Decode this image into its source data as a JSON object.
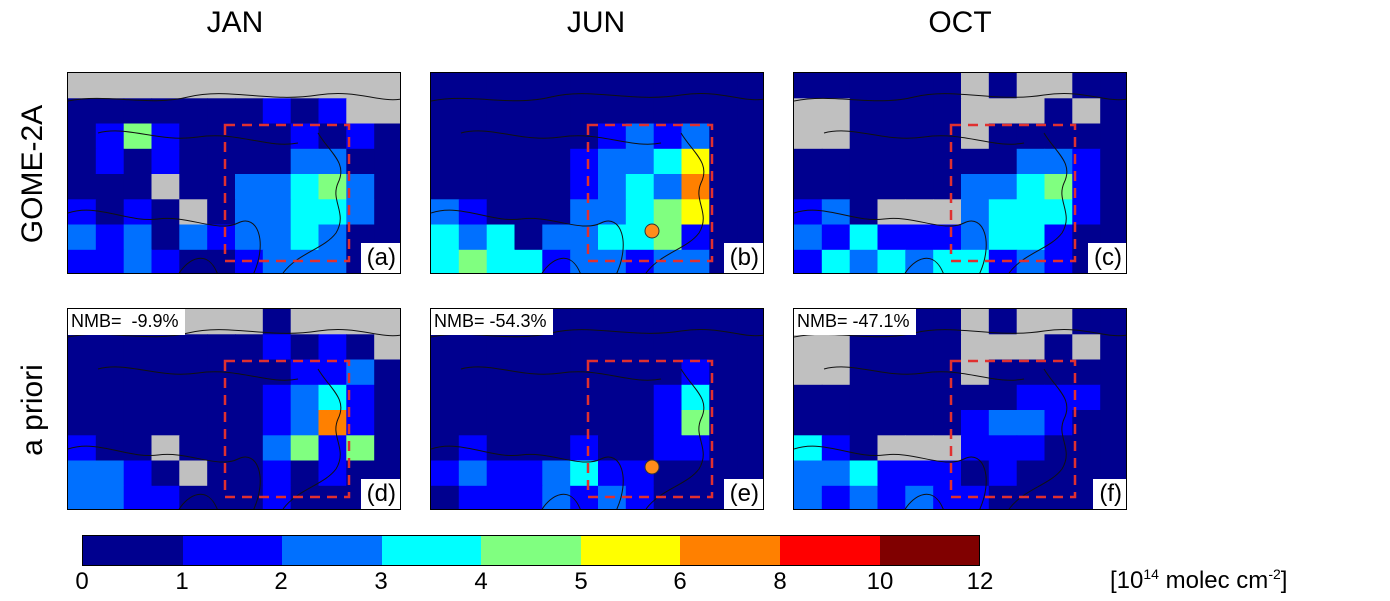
{
  "columns": [
    "JAN",
    "JUN",
    "OCT"
  ],
  "rows": [
    "GOME-2A",
    "a priori"
  ],
  "panels": [
    {
      "label": "(a)",
      "nmb": ""
    },
    {
      "label": "(b)",
      "nmb": ""
    },
    {
      "label": "(c)",
      "nmb": ""
    },
    {
      "label": "(d)",
      "nmb": "NMB=  -9.9%"
    },
    {
      "label": "(e)",
      "nmb": "NMB= -54.3%"
    },
    {
      "label": "(f)",
      "nmb": "NMB= -47.1%"
    }
  ],
  "colorbar": {
    "ticks": [
      "0",
      "1",
      "2",
      "3",
      "4",
      "5",
      "6",
      "8",
      "10",
      "12"
    ],
    "colors": [
      "#00008f",
      "#0000ff",
      "#0070ff",
      "#00ffff",
      "#80ff80",
      "#ffff00",
      "#ff8000",
      "#ff0000",
      "#800000"
    ],
    "units_prefix": "[10",
    "units_exp1": "14",
    "units_mid": " molec cm",
    "units_exp2": "-2",
    "units_suffix": "]"
  },
  "colors": {
    "missing": "#c0c0c0",
    "box": "#e03030",
    "marker": "#ff8c1a"
  }
}
